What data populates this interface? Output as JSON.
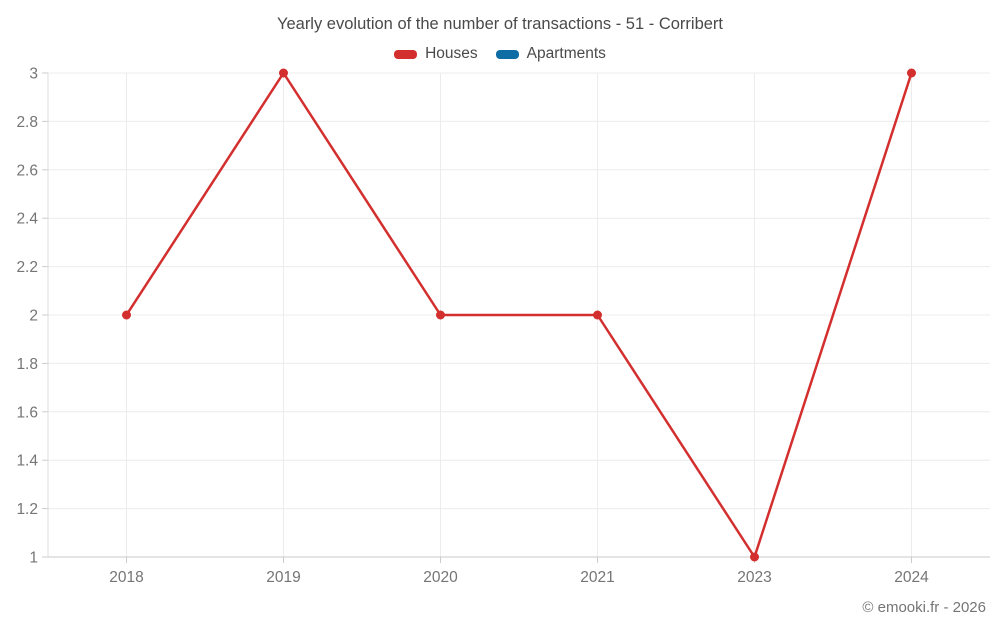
{
  "chart_data": {
    "type": "line",
    "title": "Yearly evolution of the number of transactions - 51 - Corribert",
    "categories": [
      "2018",
      "2019",
      "2020",
      "2021",
      "2023",
      "2024"
    ],
    "series": [
      {
        "name": "Houses",
        "color": "#d32f2f",
        "values": [
          2,
          3,
          2,
          2,
          1,
          3
        ]
      },
      {
        "name": "Apartments",
        "color": "#0e6da4",
        "values": [
          null,
          null,
          null,
          null,
          null,
          null
        ]
      }
    ],
    "xlabel": "",
    "ylabel": "",
    "ylim": [
      1,
      3
    ],
    "ytick_values": [
      1,
      1.2,
      1.4,
      1.6,
      1.8,
      2,
      2.2,
      2.4,
      2.6,
      2.8,
      3
    ],
    "ytick_labels": [
      "1",
      "1.2",
      "1.4",
      "1.6",
      "1.8",
      "2",
      "2.2",
      "2.4",
      "2.6",
      "2.8",
      "3"
    ],
    "grid": true,
    "legend_position": "top"
  },
  "footer": {
    "copyright": "© emooki.fr - 2026"
  },
  "colors": {
    "grid": "#ececec",
    "axis": "#cccccc",
    "tick_label": "#757575",
    "title": "#4a4a4a",
    "background": "#ffffff"
  }
}
